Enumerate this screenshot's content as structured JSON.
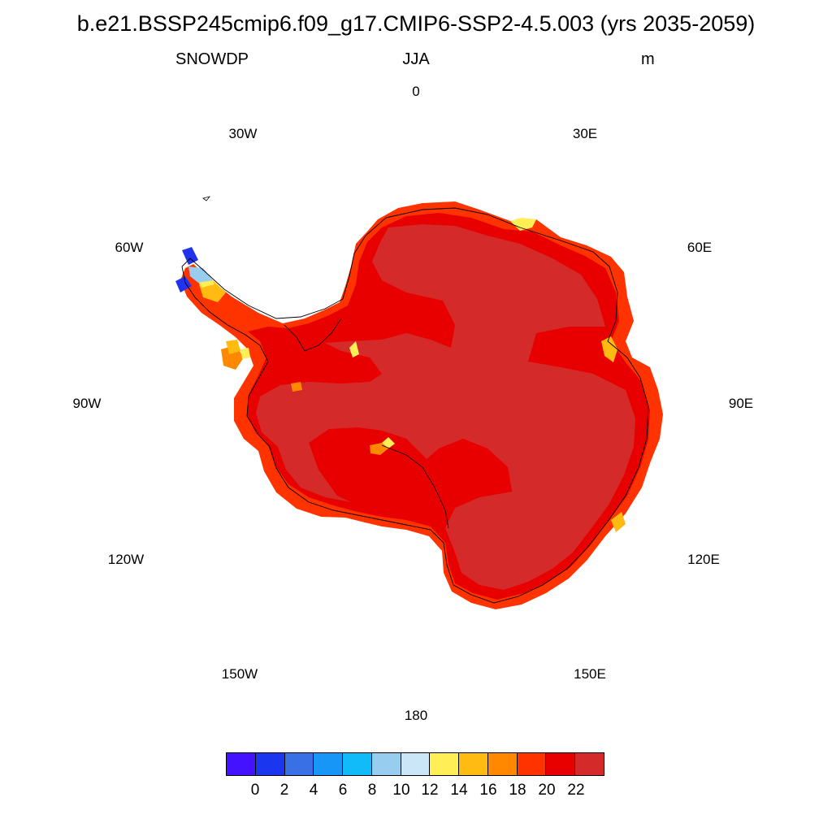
{
  "title": "b.e21.BSSP245cmip6.f09_g17.CMIP6-SSP2-4.5.003 (yrs 2035-2059)",
  "subtitle": {
    "variable": "SNOWDP",
    "season": "JJA",
    "units": "m"
  },
  "longitude_labels": {
    "lon_0": "0",
    "lon_30e": "30E",
    "lon_60e": "60E",
    "lon_90e": "90E",
    "lon_120e": "120E",
    "lon_150e": "150E",
    "lon_180": "180",
    "lon_150w": "150W",
    "lon_120w": "120W",
    "lon_90w": "90W",
    "lon_60w": "60W",
    "lon_30w": "30W"
  },
  "map": {
    "projection": "south-polar-stereographic",
    "region": "Antarctica",
    "dominant_value_range": "above 22",
    "colors": {
      "interior": "#d42a2a",
      "ring": "#e80000",
      "coast": "#ff3300",
      "fringe_orange": "#ff8800",
      "fringe_gold": "#ffbb11",
      "fringe_yellow": "#ffee55",
      "peninsula_low": "#2233ee",
      "peninsula_mid": "#99ccee"
    }
  },
  "colorbar": {
    "colors": [
      "#4412ff",
      "#1a36ee",
      "#3a70e6",
      "#1896f7",
      "#11bbf7",
      "#97cdef",
      "#cbe6f7",
      "#ffee55",
      "#ffbb11",
      "#ff8800",
      "#ff3300",
      "#e80000",
      "#d42a2a"
    ],
    "tick_labels": [
      "0",
      "2",
      "4",
      "6",
      "8",
      "10",
      "12",
      "14",
      "16",
      "18",
      "20",
      "22"
    ]
  }
}
